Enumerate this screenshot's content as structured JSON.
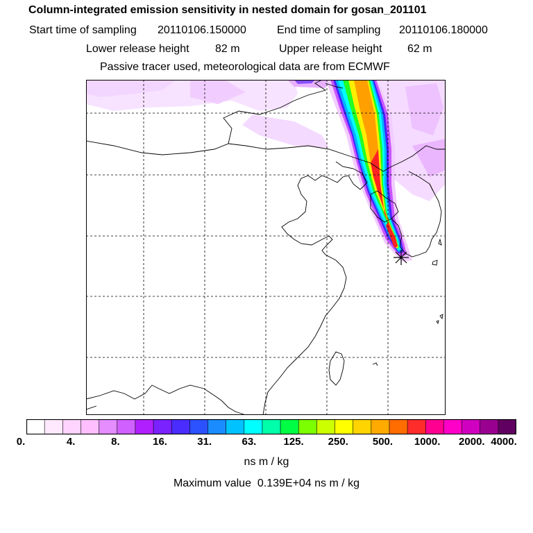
{
  "header": {
    "title": "Column-integrated emission sensitivity in nested domain for gosan_201101",
    "start_label": "Start time of sampling",
    "start_value": "20110106.150000",
    "end_label": "End time of sampling",
    "end_value": "20110106.180000",
    "lower_label": "Lower release height",
    "lower_value": "82 m",
    "upper_label": "Upper release height",
    "upper_value": "62 m",
    "tracer_line": "Passive tracer used, meteorological data are from ECMWF"
  },
  "map": {
    "receptor_marker": "receptor-star-icon",
    "plume_colors": [
      "#f2ccff",
      "#c855ff",
      "#4422ff",
      "#00b4ff",
      "#00ffff",
      "#22ff22",
      "#ffee00",
      "#ffa000",
      "#ff2222"
    ]
  },
  "colorbar": {
    "colors": [
      "#ffffff",
      "#ffe9ff",
      "#ffd4ff",
      "#ffbfff",
      "#e58cff",
      "#d060ff",
      "#b020ff",
      "#7a22ff",
      "#4a2cff",
      "#2c52ff",
      "#1a8cff",
      "#00c2ff",
      "#00ffff",
      "#00ffaa",
      "#00ff44",
      "#7cff00",
      "#ccff00",
      "#ffff00",
      "#ffd400",
      "#ffaa00",
      "#ff6c00",
      "#ff2c2c",
      "#ff0090",
      "#ff00c8",
      "#d000c0",
      "#9a0090",
      "#600060"
    ],
    "labels": [
      "0.",
      "4.",
      "8.",
      "16.",
      "31.",
      "63.",
      "125.",
      "250.",
      "500.",
      "1000.",
      "2000.",
      "4000."
    ]
  },
  "units": "ns m / kg",
  "max_label": "Maximum value",
  "max_value": "0.139E+04 ns m / kg"
}
